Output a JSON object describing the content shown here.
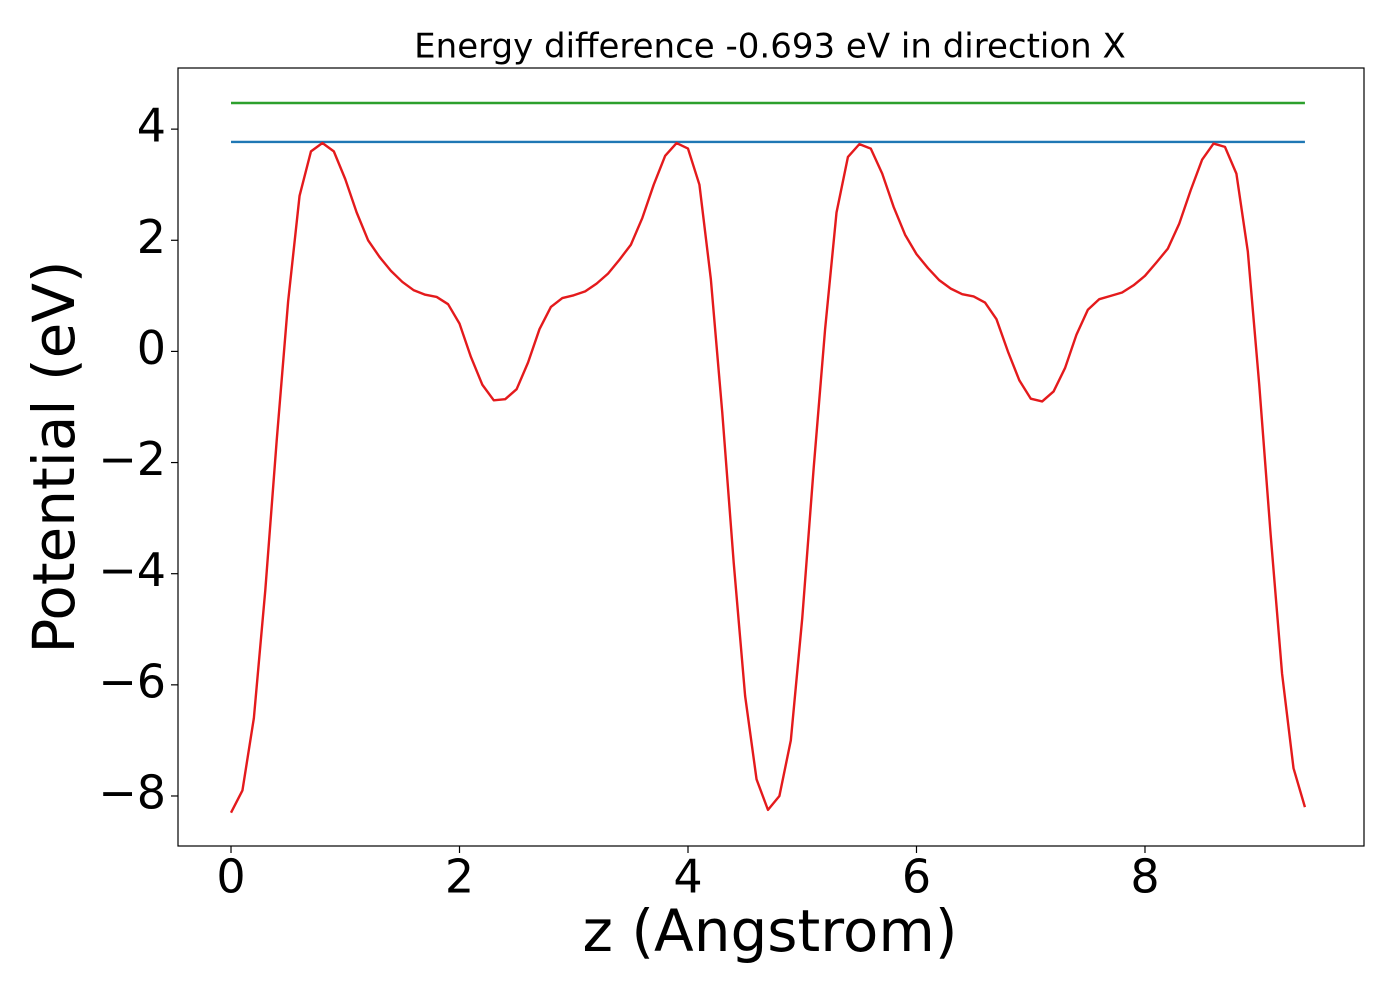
{
  "chart_data": {
    "type": "line",
    "title": "Energy difference -0.693 eV in direction X",
    "xlabel": "z (Angstrom)",
    "ylabel": "Potential (eV)",
    "xlim": [
      -0.464,
      9.917
    ],
    "ylim": [
      -8.9,
      5.1
    ],
    "xticks": [
      0,
      2,
      4,
      6,
      8
    ],
    "yticks": [
      {
        "value": -8,
        "label": "−8"
      },
      {
        "value": -6,
        "label": "−6"
      },
      {
        "value": -4,
        "label": "−4"
      },
      {
        "value": -2,
        "label": "−2"
      },
      0,
      2,
      4
    ],
    "series": [
      {
        "color": "#2ca02c",
        "x": [
          0,
          9.4
        ],
        "values": [
          4.47,
          4.47
        ]
      },
      {
        "color": "#1f77b4",
        "x": [
          0,
          9.4
        ],
        "values": [
          3.77,
          3.77
        ]
      },
      {
        "color": "#e41a1c",
        "x": [
          0,
          0.1,
          0.2,
          0.3,
          0.4,
          0.5,
          0.6,
          0.7,
          0.8,
          0.9,
          1,
          1.1,
          1.2,
          1.3,
          1.4,
          1.5,
          1.6,
          1.7,
          1.8,
          1.9,
          2,
          2.1,
          2.2,
          2.3,
          2.4,
          2.5,
          2.6,
          2.7,
          2.8,
          2.9,
          3,
          3.1,
          3.2,
          3.3,
          3.4,
          3.5,
          3.6,
          3.7,
          3.8,
          3.9,
          4,
          4.1,
          4.2,
          4.3,
          4.4,
          4.5,
          4.6,
          4.7,
          4.8,
          4.9,
          5,
          5.1,
          5.2,
          5.3,
          5.4,
          5.5,
          5.6,
          5.7,
          5.8,
          5.9,
          6,
          6.1,
          6.2,
          6.3,
          6.4,
          6.5,
          6.6,
          6.7,
          6.8,
          6.9,
          7,
          7.1,
          7.2,
          7.3,
          7.4,
          7.5,
          7.6,
          7.7,
          7.8,
          7.9,
          8,
          8.1,
          8.2,
          8.3,
          8.4,
          8.5,
          8.6,
          8.7,
          8.8,
          8.9,
          9,
          9.1,
          9.2,
          9.3,
          9.4
        ],
        "values": [
          -8.3,
          -7.9,
          -6.6,
          -4.3,
          -1.6,
          0.9,
          2.8,
          3.6,
          3.75,
          3.6,
          3.1,
          2.5,
          2.0,
          1.7,
          1.45,
          1.25,
          1.1,
          1.02,
          0.98,
          0.85,
          0.5,
          -0.1,
          -0.6,
          -0.88,
          -0.86,
          -0.68,
          -0.2,
          0.4,
          0.8,
          0.96,
          1.01,
          1.08,
          1.22,
          1.4,
          1.65,
          1.92,
          2.4,
          3.0,
          3.52,
          3.75,
          3.65,
          3.0,
          1.3,
          -1.1,
          -3.8,
          -6.2,
          -7.7,
          -8.25,
          -8.0,
          -7.0,
          -4.8,
          -2.1,
          0.4,
          2.5,
          3.5,
          3.73,
          3.65,
          3.2,
          2.6,
          2.1,
          1.75,
          1.5,
          1.28,
          1.13,
          1.03,
          0.99,
          0.88,
          0.58,
          0.0,
          -0.52,
          -0.85,
          -0.9,
          -0.72,
          -0.3,
          0.3,
          0.75,
          0.94,
          1.0,
          1.06,
          1.19,
          1.36,
          1.6,
          1.85,
          2.3,
          2.9,
          3.45,
          3.74,
          3.68,
          3.2,
          1.8,
          -0.6,
          -3.3,
          -5.8,
          -7.5,
          -8.2
        ]
      }
    ]
  }
}
